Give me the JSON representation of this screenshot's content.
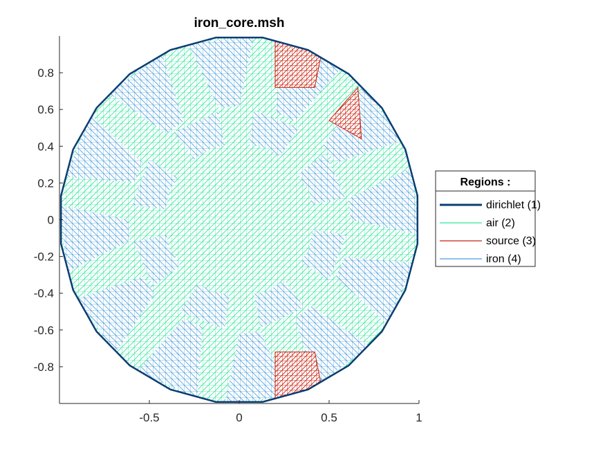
{
  "figure": {
    "title": "iron_core.msh",
    "legend_title": "Regions :"
  },
  "chart_data": {
    "type": "mesh",
    "title": "iron_core.msh",
    "xlim": [
      -1,
      1
    ],
    "ylim": [
      -1,
      1
    ],
    "xticks": [
      -0.5,
      0,
      0.5,
      1
    ],
    "xtick_labels": [
      "-0.5",
      "0",
      "0.5",
      "1"
    ],
    "yticks": [
      -0.8,
      -0.6,
      -0.4,
      -0.2,
      0,
      0.2,
      0.4,
      0.6,
      0.8
    ],
    "ytick_labels": [
      "-0.8",
      "-0.6",
      "-0.4",
      "-0.2",
      "0",
      "0.2",
      "0.4",
      "0.6",
      "0.8"
    ],
    "grid": false,
    "legend_placement": "right",
    "boundary_radius": 1,
    "boundary_sides": 24,
    "regions": [
      {
        "name": "dirichlet (1)",
        "color": "#0b3d73",
        "kind": "boundary"
      },
      {
        "name": "air (2)",
        "color": "#2ee59a",
        "kind": "fill"
      },
      {
        "name": "source (3)",
        "color": "#c8200e",
        "kind": "fill"
      },
      {
        "name": "iron (4)",
        "color": "#4a9be0",
        "kind": "fill"
      }
    ],
    "source_quads": [
      [
        [
          0.2,
          1.0
        ],
        [
          0.46,
          0.92
        ],
        [
          0.42,
          0.72
        ],
        [
          0.2,
          0.72
        ]
      ],
      [
        [
          0.66,
          0.72
        ],
        [
          0.5,
          0.54
        ],
        [
          0.68,
          0.44
        ]
      ],
      [
        [
          0.2,
          -0.72
        ],
        [
          0.42,
          -0.72
        ],
        [
          0.46,
          -0.92
        ],
        [
          0.2,
          -1.0
        ]
      ]
    ],
    "source_triangle": [
      [
        0.66,
        0.72
      ],
      [
        0.5,
        0.54
      ],
      [
        0.68,
        0.44
      ]
    ]
  }
}
